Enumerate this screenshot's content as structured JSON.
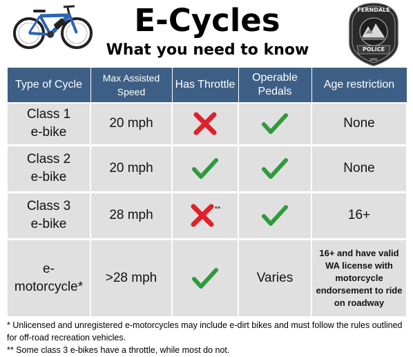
{
  "header": {
    "title": "E-Cycles",
    "subtitle": "What you need to know",
    "badge": {
      "top_text": "FERNDALE",
      "bottom_text": "POLICE",
      "year": "1891",
      "colors": {
        "outer": "#2a2a2a",
        "ring": "#4a4a4a",
        "inner": "#1e1e1e"
      }
    },
    "bike_image": "blue-electric-bicycle"
  },
  "table": {
    "columns": [
      "Type of Cycle",
      "Max Assisted Speed",
      "Has Throttle",
      "Operable Pedals",
      "Age restriction"
    ],
    "rows": [
      {
        "type_line1": "Class 1",
        "type_line2": "e-bike",
        "speed": "20 mph",
        "throttle": "cross",
        "throttle_note": "",
        "pedals": "check",
        "pedals_text": "",
        "age": "None"
      },
      {
        "type_line1": "Class 2",
        "type_line2": "e-bike",
        "speed": "20 mph",
        "throttle": "check",
        "throttle_note": "",
        "pedals": "check",
        "pedals_text": "",
        "age": "None"
      },
      {
        "type_line1": "Class 3",
        "type_line2": "e-bike",
        "speed": "28 mph",
        "throttle": "cross",
        "throttle_note": "**",
        "pedals": "check",
        "pedals_text": "",
        "age": "16+"
      },
      {
        "type_line1": "e-",
        "type_line2": "motorcycle*",
        "speed": ">28 mph",
        "throttle": "check",
        "throttle_note": "",
        "pedals": "text",
        "pedals_text": "Varies",
        "age": "16+ and have valid WA license with motorcycle endorsement to ride on roadway"
      }
    ],
    "colors": {
      "header_bg": "#3e5f85",
      "cell_bg": "#e0e0e0",
      "check": "#2e9a3c",
      "cross": "#e0202a"
    }
  },
  "footnotes": {
    "note1": "* Unlicensed and unregistered e-motorcycles may include e-dirt bikes and must follow the rules outlined for off-road recreation vehicles.",
    "note2": "** Some class 3 e-bikes have a throttle, while most do not."
  }
}
